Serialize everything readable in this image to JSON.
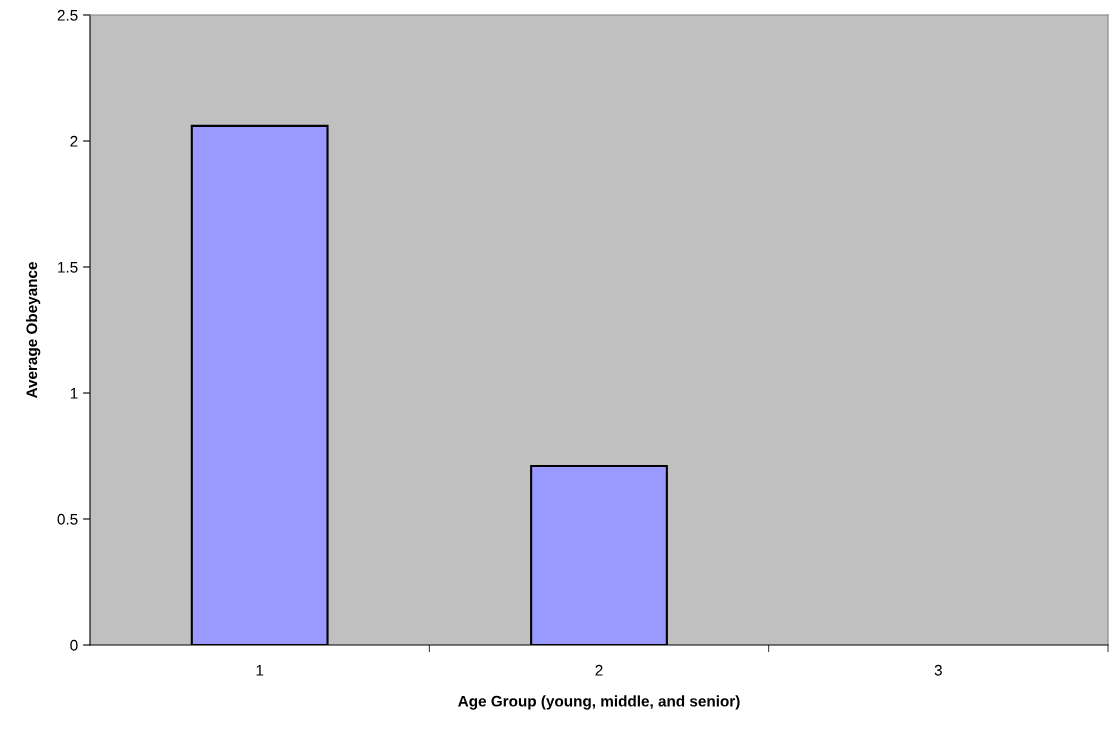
{
  "chart_data": {
    "type": "bar",
    "xlabel": "Age Group (young, middle, and senior)",
    "ylabel": "Average Obeyance",
    "categories": [
      "1",
      "2",
      "3"
    ],
    "values": [
      2.06,
      0.71,
      0
    ],
    "color": "#9999ff",
    "ylim": [
      0,
      2.5
    ],
    "yticks": [
      0,
      0.5,
      1,
      1.5,
      2,
      2.5
    ],
    "grid": false,
    "legend": false
  }
}
